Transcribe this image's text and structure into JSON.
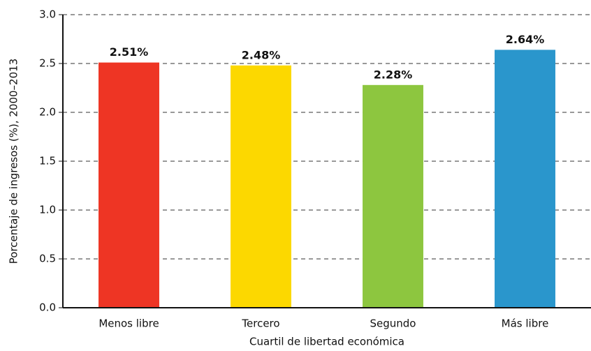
{
  "chart_data": {
    "type": "bar",
    "categories": [
      "Menos libre",
      "Tercero",
      "Segundo",
      "Más libre"
    ],
    "values": [
      2.51,
      2.48,
      2.28,
      2.64
    ],
    "value_labels": [
      "2.51%",
      "2.48%",
      "2.28%",
      "2.64%"
    ],
    "colors": [
      "#ee3524",
      "#fcd800",
      "#8dc63f",
      "#2a96cc"
    ],
    "ylabel": "Porcentaje de ingresos (%), 2000–2013",
    "xlabel": "Cuartil de libertad económica",
    "ylim": [
      0,
      3
    ],
    "yticks": [
      {
        "value": 0,
        "label": "0.0"
      },
      0.5,
      {
        "value": 1,
        "label": "1.0"
      },
      1.5,
      {
        "value": 2,
        "label": "2.0"
      },
      2.5,
      {
        "value": 3,
        "label": "3.0"
      }
    ],
    "grid": true
  }
}
